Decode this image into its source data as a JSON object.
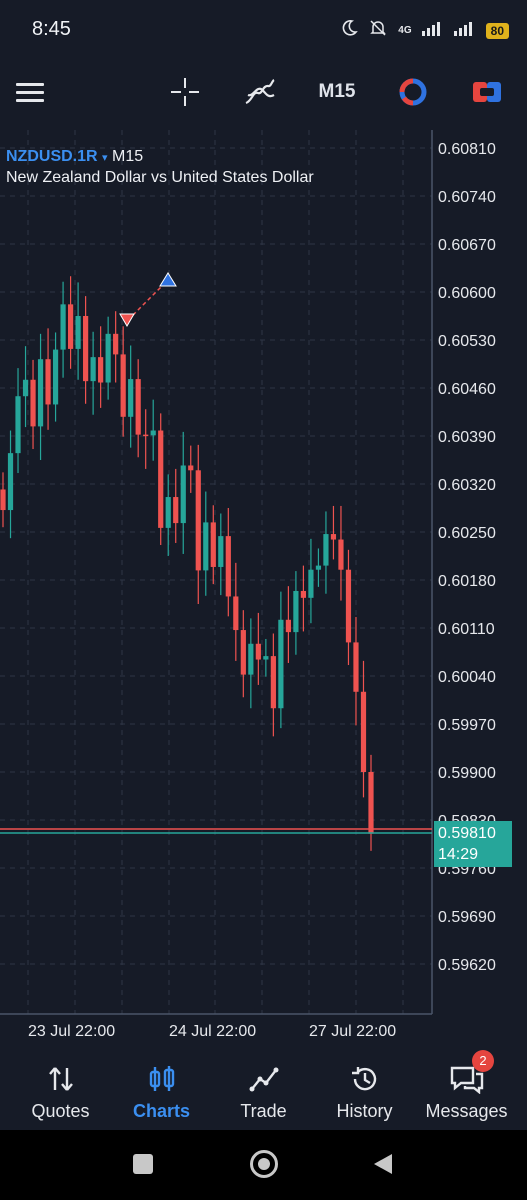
{
  "status": {
    "time": "8:45",
    "network": "4G",
    "battery": "80"
  },
  "toolbar": {
    "timeframe": "M15"
  },
  "chart": {
    "symbol": "NZDUSD.1R",
    "timeframe": "M15",
    "description": "New Zealand Dollar vs United States Dollar",
    "price_labels": [
      "0.60810",
      "0.60740",
      "0.60670",
      "0.60600",
      "0.60530",
      "0.60460",
      "0.60390",
      "0.60320",
      "0.60250",
      "0.60180",
      "0.60110",
      "0.60040",
      "0.59970",
      "0.59900",
      "0.59830",
      "0.59760",
      "0.59690",
      "0.59620"
    ],
    "date_labels": [
      "23 Jul 22:00",
      "24 Jul 22:00",
      "27 Jul 22:00"
    ],
    "current_price": "0.59810",
    "countdown": "14:29",
    "colors": {
      "up": "#26a69a",
      "down": "#ef5350",
      "background": "#161b27",
      "grid": "#2e3646"
    }
  },
  "chart_data": {
    "type": "candlestick",
    "series": [
      {
        "name": "NZDUSD.1R",
        "closes": [
          0.60282,
          0.60365,
          0.60448,
          0.60472,
          0.60404,
          0.60502,
          0.60436,
          0.60516,
          0.60582,
          0.60517,
          0.60565,
          0.6047,
          0.60505,
          0.60468,
          0.60539,
          0.60509,
          0.60418,
          0.60473,
          0.60392,
          0.60391,
          0.60398,
          0.60256,
          0.60301,
          0.60263,
          0.60347,
          0.6034,
          0.60194,
          0.60264,
          0.60199,
          0.60244,
          0.60156,
          0.60107,
          0.60042,
          0.60087,
          0.60064,
          0.60069,
          0.59993,
          0.60122,
          0.60104,
          0.60164,
          0.60154,
          0.60195,
          0.60201,
          0.60247,
          0.60239,
          0.60195,
          0.60089,
          0.60017,
          0.599,
          0.5981
        ]
      }
    ],
    "ylim": [
      0.5956,
      0.6085
    ],
    "x_ticks": [
      "23 Jul 22:00",
      "24 Jul 22:00",
      "27 Jul 22:00"
    ],
    "grid": true
  },
  "nav": [
    {
      "label": "Quotes",
      "icon": "quotes-icon"
    },
    {
      "label": "Charts",
      "icon": "charts-icon",
      "active": true
    },
    {
      "label": "Trade",
      "icon": "trade-icon"
    },
    {
      "label": "History",
      "icon": "history-icon"
    },
    {
      "label": "Messages",
      "icon": "messages-icon",
      "badge": "2"
    }
  ]
}
